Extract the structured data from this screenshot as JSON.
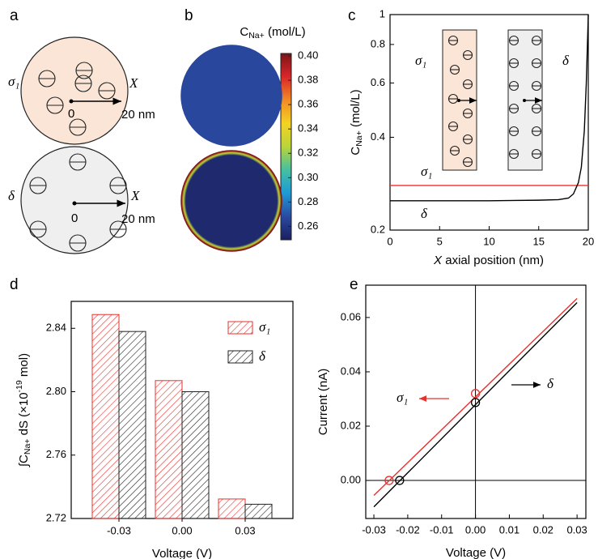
{
  "diagram": {
    "label": "a",
    "items": [
      {
        "name": "σ₁",
        "axis": "X",
        "origin": "0",
        "radius": "20 nm"
      },
      {
        "name": "δ",
        "axis": "X",
        "origin": "0",
        "radius": "20 nm"
      }
    ]
  },
  "chart_data": [
    {
      "type": "colormap",
      "panel": "b",
      "title": [
        "C",
        "Na+",
        " (mol/L)"
      ],
      "clim": [
        0.249,
        0.402
      ],
      "cticks": [
        0.26,
        0.28,
        {
          "value": 0.3,
          "label": "0.30"
        },
        0.32,
        0.34,
        0.36,
        0.38,
        {
          "value": 0.4,
          "label": "0.40"
        }
      ],
      "colormap": [
        "#1a1f5e",
        "#2a4aa0",
        "#1e9ad6",
        "#45c0a0",
        "#b9d43a",
        "#f5d323",
        "#f28a25",
        "#d9262a",
        "#7b1416"
      ],
      "center_values": [
        0.267,
        0.2536
      ],
      "edge_values": [
        0.267,
        0.4
      ]
    },
    {
      "type": "line",
      "panel": "c",
      "ylabel": [
        "C",
        "Na+",
        " (mol/L)"
      ],
      "xlabel": [
        "X",
        " axial position (nm)"
      ],
      "xlim": [
        0,
        20
      ],
      "xticks": [
        0,
        5,
        10,
        15,
        20
      ],
      "ylim": [
        0.2,
        1
      ],
      "yticks": [
        0.2,
        0.4,
        0.6,
        0.8,
        1
      ],
      "yscale": "log",
      "series": [
        {
          "name": "σ₁",
          "color": "#e8302c",
          "x": [
            0,
            20
          ],
          "values": [
            0.279,
            0.279
          ]
        },
        {
          "name": "δ",
          "color": "#000000",
          "x": [
            0,
            5,
            10,
            15,
            17,
            18,
            18.5,
            19,
            19.3,
            19.6,
            19.8,
            20
          ],
          "values": [
            0.249,
            0.249,
            0.249,
            0.25,
            0.251,
            0.254,
            0.262,
            0.285,
            0.32,
            0.42,
            0.6,
            1.0
          ]
        }
      ],
      "annotations": [
        "σ₁",
        "δ"
      ]
    },
    {
      "type": "bar",
      "panel": "d",
      "xlabel": "Voltage (V)",
      "ylabel": [
        "∫C",
        "Na+",
        " dS (×10",
        "-19",
        " mol)"
      ],
      "categories": [
        "-0.03",
        "0.00",
        "0.03"
      ],
      "ylim": [
        2.72,
        2.857
      ],
      "yticks": [
        2.72,
        2.76,
        {
          "value": 2.8,
          "label": "2.80"
        },
        2.84
      ],
      "series": [
        {
          "name": "σ₁",
          "color": "#e8302c",
          "values": [
            2.8487,
            2.807,
            2.7323
          ]
        },
        {
          "name": "δ",
          "color": "#222222",
          "values": [
            2.838,
            2.8,
            2.729
          ]
        }
      ],
      "hatch": true
    },
    {
      "type": "line",
      "panel": "e",
      "xlabel": "Voltage (V)",
      "ylabel": "Current (nA)",
      "xlim": [
        -0.0324,
        0.0326
      ],
      "xticks": [
        -0.03,
        -0.02,
        -0.01,
        {
          "value": 0,
          "label": "0.00"
        },
        0.01,
        0.02,
        0.03
      ],
      "ylim": [
        -0.014,
        0.0719
      ],
      "yticks": [
        {
          "value": 0,
          "label": "0.00"
        },
        0.02,
        0.04,
        0.06
      ],
      "series": [
        {
          "name": "σ₁",
          "color": "#e8302c",
          "x": [
            -0.03,
            0.03
          ],
          "values": [
            -0.0055,
            0.067
          ],
          "marker_x": [
            -0.0255,
            0
          ],
          "marker_values": [
            0,
            0.032
          ]
        },
        {
          "name": "δ",
          "color": "#000000",
          "x": [
            -0.03,
            0.03
          ],
          "values": [
            -0.0097,
            0.0655
          ],
          "marker_x": [
            -0.0224,
            0
          ],
          "marker_values": [
            0,
            0.0287
          ]
        }
      ],
      "zero_lines": true
    }
  ]
}
